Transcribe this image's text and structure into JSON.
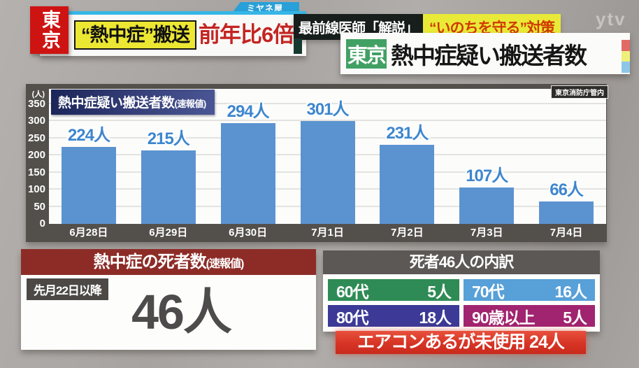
{
  "broadcast": {
    "show_tab": "ミヤネ屋",
    "watermark": "ytv",
    "region_badge": "東京",
    "topic": "“熱中症”搬送",
    "comparison": "前年比6倍",
    "subheader_left": "最前線医師「解説」",
    "subheader_right": "“いのちを守る”対策",
    "title_region": "東京",
    "title": "熱中症疑い搬送者数"
  },
  "chart_data": {
    "type": "bar",
    "title": "熱中症疑い搬送者数",
    "title_suffix": "(速報値)",
    "unit_label": "(人)",
    "categories": [
      "6月28日",
      "6月29日",
      "6月30日",
      "7月1日",
      "7月2日",
      "7月3日",
      "7月4日"
    ],
    "values": [
      224,
      215,
      294,
      301,
      231,
      107,
      66
    ],
    "bar_labels": [
      "224人",
      "215人",
      "294人",
      "301人",
      "231人",
      "107人",
      "66人"
    ],
    "ylim": [
      0,
      350
    ],
    "ytick_step": 50,
    "grid": "horizontal",
    "source": "東京消防庁管内",
    "bar_color": "#5b93d0",
    "bar_label_color": "#3e86ce"
  },
  "deaths_panel": {
    "header": "熱中症の死者数",
    "header_suffix": "(速報値)",
    "period": "先月22日以降",
    "count": "46人",
    "header_color": "#8d2c27"
  },
  "breakdown_panel": {
    "header": "死者46人の内訳",
    "items": [
      {
        "label": "60代",
        "value": "5人",
        "color": "#2f8b55"
      },
      {
        "label": "70代",
        "value": "16人",
        "color": "#57a0d8"
      },
      {
        "label": "80代",
        "value": "18人",
        "color": "#3c3a96"
      },
      {
        "label": "90歳以上",
        "value": "5人",
        "color": "#a12470"
      }
    ],
    "footer": "エアコンあるが未使用 24人",
    "footer_color": "#d63425"
  }
}
